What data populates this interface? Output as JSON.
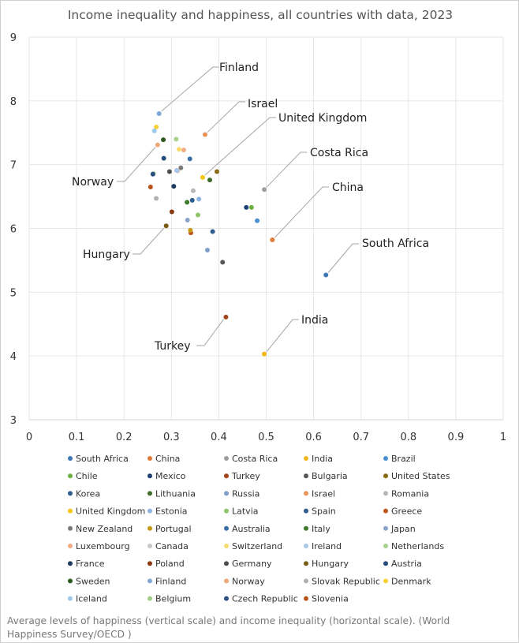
{
  "chart_data": {
    "type": "scatter",
    "title": "Income inequality and happiness, all countries with data, 2023",
    "xlabel": "",
    "ylabel": "",
    "xlim": [
      0,
      1
    ],
    "ylim": [
      3,
      9
    ],
    "x_ticks": [
      "0",
      "0.1",
      "0.2",
      "0.3",
      "0.4",
      "0.5",
      "0.6",
      "0.7",
      "0.8",
      "0.9",
      "1"
    ],
    "y_ticks": [
      "3",
      "4",
      "5",
      "6",
      "7",
      "8",
      "9"
    ],
    "grid": true,
    "legend_position": "bottom",
    "series": [
      {
        "name": "South Africa",
        "color": "#3f78b8",
        "x": 0.626,
        "y": 5.27
      },
      {
        "name": "China",
        "color": "#e07b39",
        "x": 0.513,
        "y": 5.82
      },
      {
        "name": "Costa Rica",
        "color": "#9e9e9e",
        "x": 0.496,
        "y": 6.61
      },
      {
        "name": "India",
        "color": "#f2b617",
        "x": 0.496,
        "y": 4.03
      },
      {
        "name": "Brazil",
        "color": "#4a8fd1",
        "x": 0.481,
        "y": 6.12
      },
      {
        "name": "Chile",
        "color": "#6cb043",
        "x": 0.469,
        "y": 6.33
      },
      {
        "name": "Mexico",
        "color": "#1f3f73",
        "x": 0.458,
        "y": 6.33
      },
      {
        "name": "Turkey",
        "color": "#a0461a",
        "x": 0.415,
        "y": 4.61
      },
      {
        "name": "Bulgaria",
        "color": "#555555",
        "x": 0.408,
        "y": 5.47
      },
      {
        "name": "United States",
        "color": "#8a6a14",
        "x": 0.396,
        "y": 6.89
      },
      {
        "name": "Korea",
        "color": "#2d5b8e",
        "x": 0.387,
        "y": 5.95
      },
      {
        "name": "Lithuania",
        "color": "#3e6b2a",
        "x": 0.381,
        "y": 6.76
      },
      {
        "name": "Russia",
        "color": "#7f9ec9",
        "x": 0.376,
        "y": 5.66
      },
      {
        "name": "Israel",
        "color": "#e8935c",
        "x": 0.371,
        "y": 7.47
      },
      {
        "name": "Romania",
        "color": "#b6b6b6",
        "x": 0.346,
        "y": 6.59
      },
      {
        "name": "United Kingdom",
        "color": "#f5c518",
        "x": 0.366,
        "y": 6.8
      },
      {
        "name": "Estonia",
        "color": "#8cb4e0",
        "x": 0.358,
        "y": 6.46
      },
      {
        "name": "Latvia",
        "color": "#8fc46a",
        "x": 0.356,
        "y": 6.21
      },
      {
        "name": "Spain",
        "color": "#2e5c90",
        "x": 0.344,
        "y": 6.44
      },
      {
        "name": "Greece",
        "color": "#c0561d",
        "x": 0.341,
        "y": 5.93
      },
      {
        "name": "New Zealand",
        "color": "#7a7a7a",
        "x": 0.32,
        "y": 6.95
      },
      {
        "name": "Portugal",
        "color": "#c79a16",
        "x": 0.34,
        "y": 5.97
      },
      {
        "name": "Australia",
        "color": "#3a6fa8",
        "x": 0.339,
        "y": 7.09
      },
      {
        "name": "Italy",
        "color": "#3d7a2c",
        "x": 0.333,
        "y": 6.41
      },
      {
        "name": "Japan",
        "color": "#8aa3c9",
        "x": 0.334,
        "y": 6.13
      },
      {
        "name": "Luxembourg",
        "color": "#f1ac84",
        "x": 0.326,
        "y": 7.23
      },
      {
        "name": "Canada",
        "color": "#c8c8c8",
        "x": 0.313,
        "y": 6.9
      },
      {
        "name": "Switzerland",
        "color": "#f7dc6f",
        "x": 0.316,
        "y": 7.24
      },
      {
        "name": "Ireland",
        "color": "#a7c7e7",
        "x": 0.311,
        "y": 6.91
      },
      {
        "name": "Netherlands",
        "color": "#a9d18e",
        "x": 0.31,
        "y": 7.4
      },
      {
        "name": "France",
        "color": "#1e3a5f",
        "x": 0.305,
        "y": 6.66
      },
      {
        "name": "Poland",
        "color": "#8b3a0f",
        "x": 0.301,
        "y": 6.26
      },
      {
        "name": "Germany",
        "color": "#4d4d4d",
        "x": 0.296,
        "y": 6.89
      },
      {
        "name": "Hungary",
        "color": "#7a5c12",
        "x": 0.289,
        "y": 6.04
      },
      {
        "name": "Austria",
        "color": "#264d7a",
        "x": 0.284,
        "y": 7.1
      },
      {
        "name": "Sweden",
        "color": "#2e5a1f",
        "x": 0.283,
        "y": 7.39
      },
      {
        "name": "Finland",
        "color": "#7fa7d6",
        "x": 0.274,
        "y": 7.8
      },
      {
        "name": "Norway",
        "color": "#f0a878",
        "x": 0.271,
        "y": 7.31
      },
      {
        "name": "Slovak Republic",
        "color": "#b0b0b0",
        "x": 0.268,
        "y": 6.47
      },
      {
        "name": "Denmark",
        "color": "#f7d038",
        "x": 0.268,
        "y": 7.59
      },
      {
        "name": "Iceland",
        "color": "#9cc8ea",
        "x": 0.264,
        "y": 7.53
      },
      {
        "name": "Belgium",
        "color": "#9fcf84",
        "x": 0.262,
        "y": 6.86
      },
      {
        "name": "Czech Republic",
        "color": "#2a4f85",
        "x": 0.261,
        "y": 6.85
      },
      {
        "name": "Slovenia",
        "color": "#b8541a",
        "x": 0.256,
        "y": 6.65
      }
    ],
    "annotations": [
      {
        "text": "Finland",
        "country": "Finland"
      },
      {
        "text": "Israel",
        "country": "Israel"
      },
      {
        "text": "United Kingdom",
        "country": "United Kingdom"
      },
      {
        "text": "Costa Rica",
        "country": "Costa Rica"
      },
      {
        "text": "China",
        "country": "China"
      },
      {
        "text": "South Africa",
        "country": "South Africa"
      },
      {
        "text": "India",
        "country": "India"
      },
      {
        "text": "Turkey",
        "country": "Turkey"
      },
      {
        "text": "Norway",
        "country": "Norway"
      },
      {
        "text": "Hungary",
        "country": "Hungary"
      }
    ]
  },
  "caption": "Average levels of happiness (vertical scale) and income inequality (horizontal scale). (World Happiness Survey/OECD )"
}
